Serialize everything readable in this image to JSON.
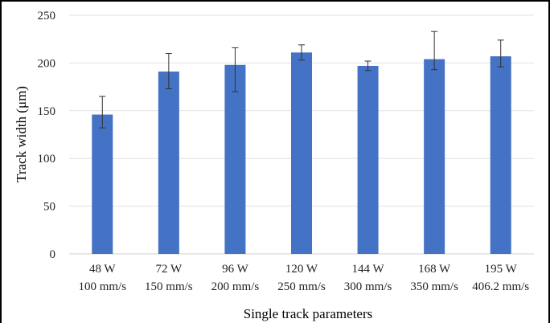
{
  "chart_data": {
    "type": "bar",
    "categories": [
      [
        "48 W",
        "100 mm/s"
      ],
      [
        "72 W",
        "150 mm/s"
      ],
      [
        "96 W",
        "200 mm/s"
      ],
      [
        "120 W",
        "250 mm/s"
      ],
      [
        "144 W",
        "300 mm/s"
      ],
      [
        "168 W",
        "350 mm/s"
      ],
      [
        "195 W",
        "406.2 mm/s"
      ]
    ],
    "values": [
      146,
      191,
      198,
      211,
      197,
      204,
      207
    ],
    "error_low": [
      14,
      18,
      28,
      8,
      5,
      11,
      11
    ],
    "error_high": [
      19,
      19,
      18,
      8,
      5,
      29,
      17
    ],
    "xlabel": "Single track parameters",
    "ylabel": "Track width (μm)",
    "ylim": [
      0,
      250
    ],
    "yticks": [
      "0",
      "50",
      "100",
      "150",
      "200",
      "250"
    ],
    "grid": true,
    "color": "#4472C4"
  }
}
